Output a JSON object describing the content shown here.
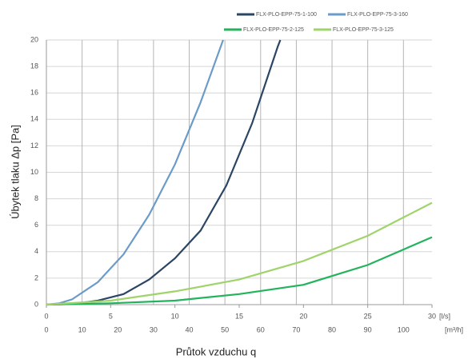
{
  "chart_data": {
    "type": "line",
    "x_label": "Průtok vzduchu q",
    "y_label": "Úbytek tlaku Δp [Pa]",
    "x_unit": "[l/s]",
    "x2_unit": "[m³/h]",
    "xlim": [
      0,
      30
    ],
    "xticks": [
      0,
      5,
      10,
      15,
      20,
      25,
      30
    ],
    "x2lim": [
      0,
      108
    ],
    "x2ticks": [
      0,
      10,
      20,
      30,
      40,
      50,
      60,
      70,
      80,
      90,
      100
    ],
    "ylim": [
      0,
      20
    ],
    "yticks": [
      0,
      2,
      4,
      6,
      8,
      10,
      12,
      14,
      16,
      18,
      20
    ],
    "grid": true,
    "series": [
      {
        "name": "FLX-PLO-EPP-75-1-100",
        "color": "#2b4565",
        "x": [
          0,
          2,
          4,
          6,
          8,
          10,
          12,
          14,
          16,
          18,
          18.2
        ],
        "values": [
          0,
          0.05,
          0.3,
          0.8,
          1.9,
          3.5,
          5.6,
          9,
          13.7,
          19.5,
          20
        ]
      },
      {
        "name": "FLX-PLO-EPP-75-3-160",
        "color": "#6b9bc8",
        "x": [
          0,
          1,
          2,
          4,
          6,
          8,
          10,
          12,
          13.75
        ],
        "values": [
          0,
          0.1,
          0.4,
          1.7,
          3.8,
          6.8,
          10.6,
          15.3,
          20
        ]
      },
      {
        "name": "FLX-PLO-EPP-75-2-125",
        "color": "#22b35c",
        "x": [
          0,
          5,
          10,
          15,
          20,
          25,
          30
        ],
        "values": [
          0,
          0.1,
          0.3,
          0.8,
          1.5,
          3.0,
          5.1
        ]
      },
      {
        "name": "FLX-PLO-EPP-75-3-125",
        "color": "#9fd46b",
        "x": [
          0,
          5,
          10,
          15,
          20,
          25,
          30
        ],
        "values": [
          0,
          0.3,
          1.0,
          1.9,
          3.3,
          5.2,
          7.7
        ]
      }
    ]
  }
}
